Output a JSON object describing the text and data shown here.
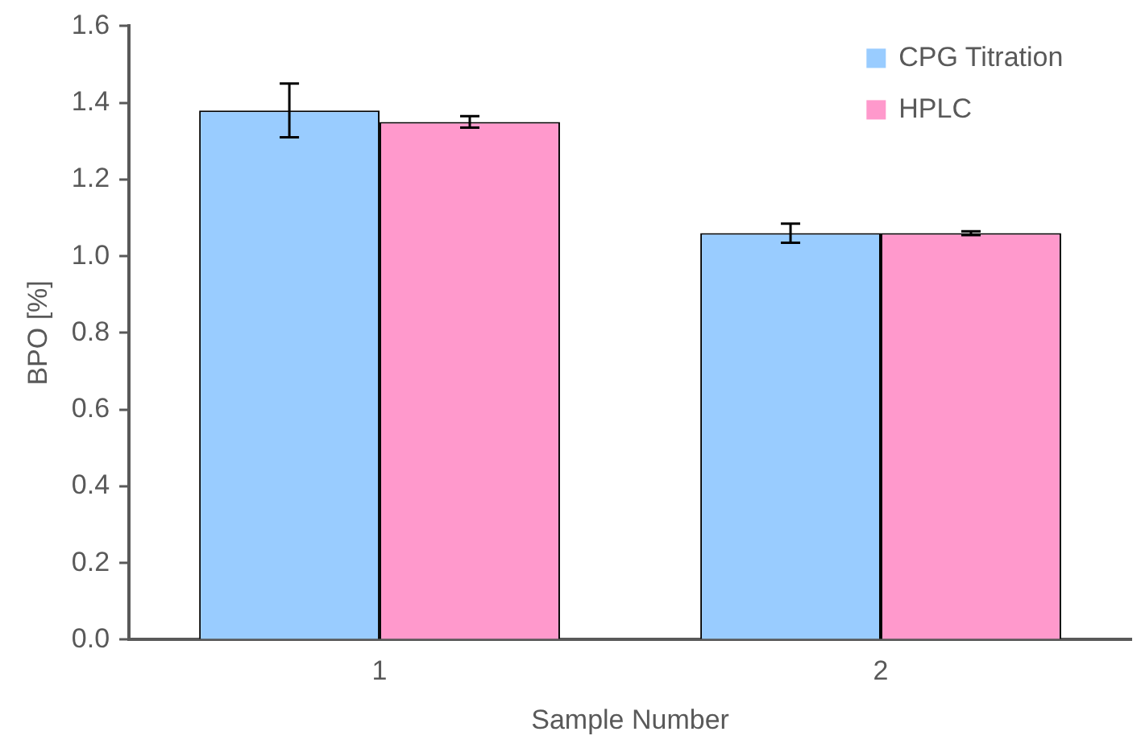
{
  "chart_data": {
    "type": "bar",
    "xlabel": "Sample Number",
    "ylabel": "BPO [%]",
    "categories": [
      "1",
      "2"
    ],
    "series": [
      {
        "name": "CPG Titration",
        "color": "#99ccff",
        "values": [
          1.38,
          1.06
        ],
        "errors": [
          0.07,
          0.025
        ]
      },
      {
        "name": "HPLC",
        "color": "#ff99cc",
        "values": [
          1.35,
          1.06
        ],
        "errors": [
          0.015,
          0.005
        ]
      }
    ],
    "ylim": [
      0,
      1.6
    ],
    "yticks": [
      {
        "value": 0,
        "label": "0.0"
      },
      0.2,
      0.4,
      0.6,
      0.8,
      {
        "value": 1,
        "label": "1.0"
      },
      1.2,
      1.4,
      1.6
    ],
    "grid": false,
    "legend": "top right"
  }
}
